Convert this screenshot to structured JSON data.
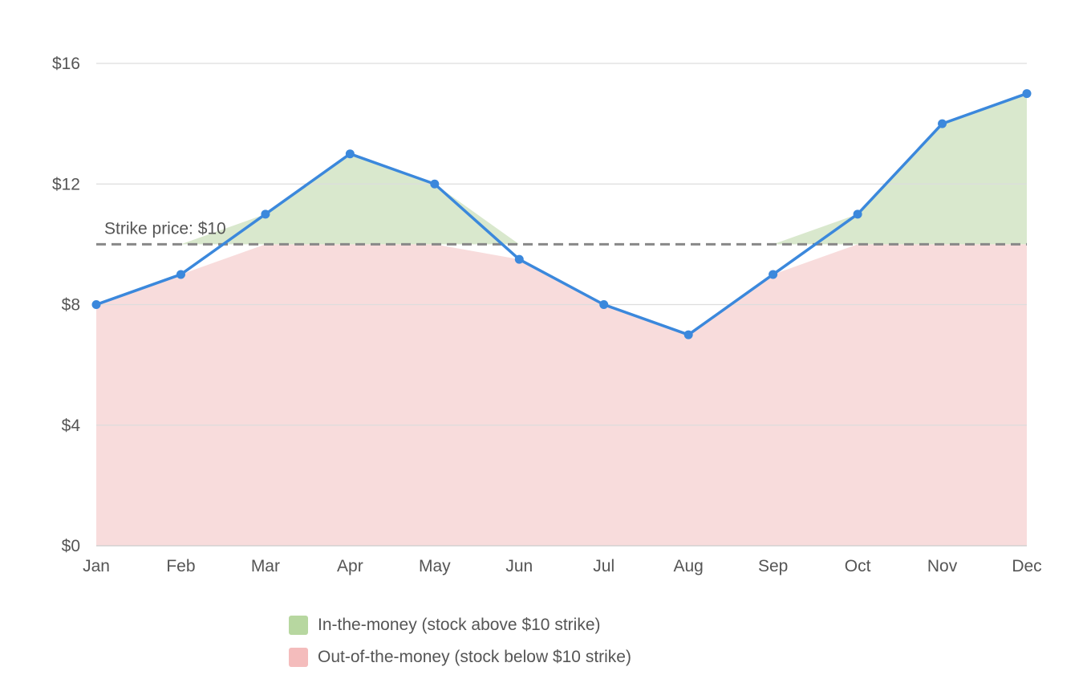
{
  "chart_data": {
    "type": "line",
    "categories": [
      "Jan",
      "Feb",
      "Mar",
      "Apr",
      "May",
      "Jun",
      "Jul",
      "Aug",
      "Sep",
      "Oct",
      "Nov",
      "Dec"
    ],
    "values": [
      8,
      9,
      11,
      13,
      12,
      9.5,
      8,
      7,
      9,
      11,
      14,
      15
    ],
    "ylim": [
      0,
      16
    ],
    "yticks": [
      0,
      4,
      8,
      12,
      16
    ],
    "ytick_labels": [
      "$0",
      "$4",
      "$8",
      "$12",
      "$16"
    ],
    "grid": true,
    "reference_line": {
      "value": 10,
      "label": "Strike price: $10",
      "style": "dashed"
    },
    "legend": {
      "placement": "bottom",
      "entries": [
        {
          "label": "In-the-money (stock above $10 strike)",
          "color": "#b7d7a0"
        },
        {
          "label": "Out-of-the-money (stock below $10 strike)",
          "color": "#f4bcbc"
        }
      ]
    },
    "colors": {
      "line": "#3b88dc",
      "above_fill": "#d9e8cd",
      "below_fill": "#f8dcdc",
      "grid": "#dddddd",
      "reference_line": "#888888"
    }
  }
}
